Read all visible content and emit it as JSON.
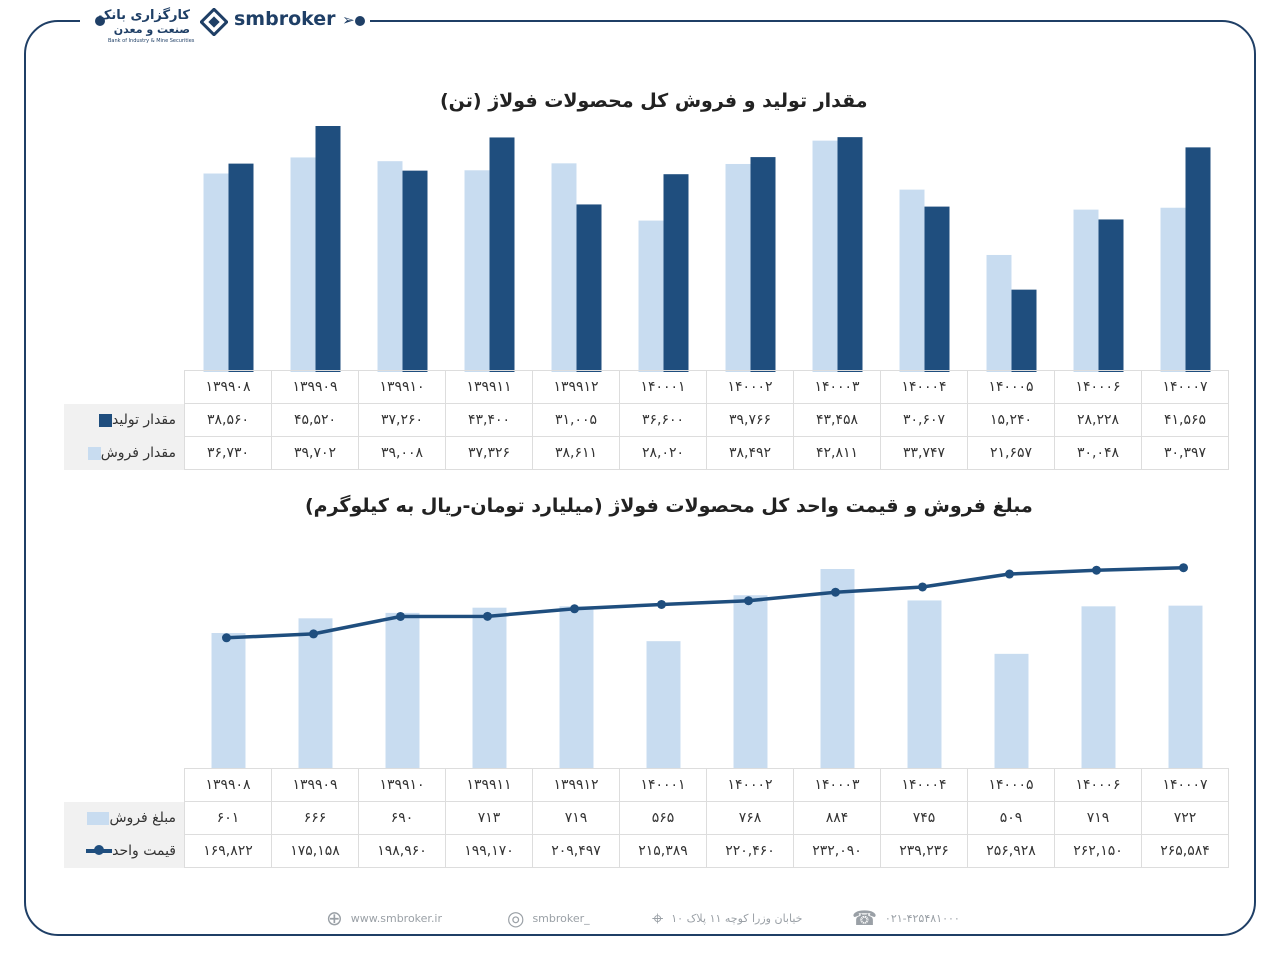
{
  "header": {
    "brand": "smbroker",
    "bank_name_line1": "کارگزاری بانک",
    "bank_name_line2": "صنعت و معدن",
    "bank_name_en": "Bank of Industry & Mine Securities"
  },
  "chart1": {
    "title": "مقدار تولید و فروش کل محصولات فولاژ (تن)",
    "legend_production": "مقدار تولید",
    "legend_sales": "مقدار فروش",
    "periods_fa": [
      "۱۳۹۹۰۸",
      "۱۳۹۹۰۹",
      "۱۳۹۹۱۰",
      "۱۳۹۹۱۱",
      "۱۳۹۹۱۲",
      "۱۴۰۰۰۱",
      "۱۴۰۰۰۲",
      "۱۴۰۰۰۳",
      "۱۴۰۰۰۴",
      "۱۴۰۰۰۵",
      "۱۴۰۰۰۶",
      "۱۴۰۰۰۷"
    ],
    "production_fa": [
      "۳۸,۵۶۰",
      "۴۵,۵۲۰",
      "۳۷,۲۶۰",
      "۴۳,۴۰۰",
      "۳۱,۰۰۵",
      "۳۶,۶۰۰",
      "۳۹,۷۶۶",
      "۴۳,۴۵۸",
      "۳۰,۶۰۷",
      "۱۵,۲۴۰",
      "۲۸,۲۲۸",
      "۴۱,۵۶۵"
    ],
    "sales_fa": [
      "۳۶,۷۳۰",
      "۳۹,۷۰۲",
      "۳۹,۰۰۸",
      "۳۷,۳۲۶",
      "۳۸,۶۱۱",
      "۲۸,۰۲۰",
      "۳۸,۴۹۲",
      "۴۲,۸۱۱",
      "۳۳,۷۴۷",
      "۲۱,۶۵۷",
      "۳۰,۰۴۸",
      "۳۰,۳۹۷"
    ]
  },
  "chart2": {
    "title": "مبلغ فروش و قیمت واحد کل محصولات فولاژ (میلیارد تومان-ریال به کیلوگرم)",
    "legend_sales_amount": "مبلغ فروش",
    "legend_unit_price": "قیمت واحد",
    "periods_fa": [
      "۱۳۹۹۰۸",
      "۱۳۹۹۰۹",
      "۱۳۹۹۱۰",
      "۱۳۹۹۱۱",
      "۱۳۹۹۱۲",
      "۱۴۰۰۰۱",
      "۱۴۰۰۰۲",
      "۱۴۰۰۰۳",
      "۱۴۰۰۰۴",
      "۱۴۰۰۰۵",
      "۱۴۰۰۰۶",
      "۱۴۰۰۰۷"
    ],
    "sales_amount_fa": [
      "۶۰۱",
      "۶۶۶",
      "۶۹۰",
      "۷۱۳",
      "۷۱۹",
      "۵۶۵",
      "۷۶۸",
      "۸۸۴",
      "۷۴۵",
      "۵۰۹",
      "۷۱۹",
      "۷۲۲"
    ],
    "unit_price_fa": [
      "۱۶۹,۸۲۲",
      "۱۷۵,۱۵۸",
      "۱۹۸,۹۶۰",
      "۱۹۹,۱۷۰",
      "۲۰۹,۴۹۷",
      "۲۱۵,۳۸۹",
      "۲۲۰,۴۶۰",
      "۲۳۲,۰۹۰",
      "۲۳۹,۲۳۶",
      "۲۵۶,۹۲۸",
      "۲۶۲,۱۵۰",
      "۲۶۵,۵۸۴"
    ]
  },
  "chart_data": [
    {
      "type": "bar",
      "title": "مقدار تولید و فروش کل محصولات فولاژ (تن)",
      "categories": [
        "139908",
        "139909",
        "139910",
        "139911",
        "139912",
        "140001",
        "140002",
        "140003",
        "140004",
        "140005",
        "140006",
        "140007"
      ],
      "series": [
        {
          "name": "مقدار فروش",
          "color": "#c8dcf0",
          "values": [
            36730,
            39702,
            39008,
            37326,
            38611,
            28020,
            38492,
            42811,
            33747,
            21657,
            30048,
            30397
          ]
        },
        {
          "name": "مقدار تولید",
          "color": "#1f4e7e",
          "values": [
            38560,
            45520,
            37260,
            43400,
            31005,
            36600,
            39766,
            43458,
            30607,
            15240,
            28228,
            41565
          ]
        }
      ]
    },
    {
      "type": "bar",
      "title": "مبلغ فروش و قیمت واحد کل محصولات فولاژ (میلیارد تومان-ریال به کیلوگرم)",
      "categories": [
        "139908",
        "139909",
        "139910",
        "139911",
        "139912",
        "140001",
        "140002",
        "140003",
        "140004",
        "140005",
        "140006",
        "140007"
      ],
      "series": [
        {
          "name": "مبلغ فروش",
          "type": "bar",
          "color": "#c8dcf0",
          "values": [
            601,
            666,
            690,
            713,
            719,
            565,
            768,
            884,
            745,
            509,
            719,
            722
          ]
        },
        {
          "name": "قیمت واحد",
          "type": "line",
          "color": "#1f4e7e",
          "values": [
            169822,
            175158,
            198960,
            199170,
            209497,
            215389,
            220460,
            232090,
            239236,
            256928,
            262150,
            265584
          ]
        }
      ]
    }
  ],
  "footer": {
    "website": "www.smbroker.ir",
    "instagram": "smbroker_",
    "address": "خیابان وزرا کوچه ۱۱ پلاک ۱۰",
    "phone": "۰۲۱-۴۲۵۴۸۱۰۰۰"
  }
}
